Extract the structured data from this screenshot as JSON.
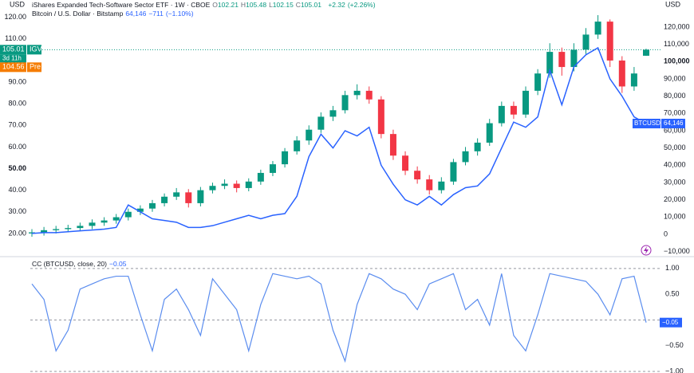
{
  "chart_data": [
    {
      "type": "candlestick",
      "unit": "USD",
      "y2unit": "USD",
      "ylim": [
        10,
        128
      ],
      "yticks": [
        {
          "value": 20,
          "label": "20.00"
        },
        {
          "value": 30,
          "label": "30.00"
        },
        {
          "value": 40,
          "label": "40.00"
        },
        {
          "value": 50,
          "label": "50.00"
        },
        {
          "value": 60,
          "label": "60.00"
        },
        {
          "value": 70,
          "label": "70.00"
        },
        {
          "value": 80,
          "label": "80.00"
        },
        {
          "value": 90,
          "label": "90.00"
        },
        {
          "value": 100,
          "label": "100.00"
        },
        {
          "value": 110,
          "label": "110.00"
        },
        {
          "value": 120,
          "label": "120.00"
        }
      ],
      "y2lim": [
        -12000,
        135700
      ],
      "y2ticks": [
        {
          "value": -10000,
          "label": "−10,000"
        },
        0,
        {
          "value": 10000,
          "label": "10,000"
        },
        {
          "value": 20000,
          "label": "20,000"
        },
        {
          "value": 30000,
          "label": "30,000"
        },
        {
          "value": 40000,
          "label": "40,000"
        },
        {
          "value": 50000,
          "label": "50,000"
        },
        {
          "value": 60000,
          "label": "60,000"
        },
        {
          "value": 70000,
          "label": "70,000"
        },
        {
          "value": 80000,
          "label": "80,000"
        },
        {
          "value": 90000,
          "label": "90,000"
        },
        {
          "value": 100000,
          "label": "100,000"
        },
        {
          "value": 110000,
          "label": "110,000"
        },
        {
          "value": 120000,
          "label": "120,000"
        }
      ],
      "series": [
        {
          "name": "iShares Expanded Tech-Software Sector ETF · 1W · CBOE",
          "symbol": "IGV",
          "up_color": "#089981",
          "down_color": "#f23645",
          "open": [
            20,
            20.5,
            21.5,
            22,
            22.5,
            23.5,
            25,
            26,
            27.5,
            30,
            31.5,
            34,
            37,
            39,
            34,
            40,
            42,
            43,
            41,
            44,
            48,
            52,
            58,
            63,
            68,
            74,
            77,
            84,
            86,
            82,
            66,
            56,
            49,
            45,
            40,
            44,
            53,
            58,
            62,
            71,
            79,
            75,
            86,
            94,
            104,
            97,
            105,
            112,
            118,
            100,
            88,
            102.21
          ],
          "high": [
            22,
            23,
            23.5,
            24,
            25,
            26.5,
            27.5,
            29,
            31.5,
            33,
            35.5,
            38.5,
            41,
            40.5,
            41.5,
            43.5,
            45,
            44.5,
            45.5,
            49.5,
            53.5,
            59.5,
            65,
            70,
            76,
            79,
            86,
            89,
            88,
            83.5,
            68,
            58,
            51,
            47,
            46,
            54.5,
            60,
            64,
            73,
            81,
            81,
            88,
            96,
            108,
            106,
            108,
            115,
            121,
            119,
            102,
            97,
            105.48
          ],
          "low": [
            18.5,
            19,
            20,
            20.5,
            21,
            22,
            23.5,
            24.5,
            26,
            28.5,
            30,
            32.5,
            35.5,
            32,
            32.5,
            38.5,
            40.5,
            39,
            39.5,
            42.5,
            46.5,
            50.5,
            56.5,
            61,
            66.5,
            72,
            75.5,
            82,
            80,
            64,
            54,
            47,
            43,
            38,
            38.5,
            42.5,
            51.5,
            56,
            60.5,
            69.5,
            73,
            73.5,
            84,
            92,
            93,
            95,
            103,
            110,
            97,
            85,
            86,
            102.15
          ],
          "close": [
            20.5,
            21.5,
            22,
            22.5,
            23.5,
            25,
            26,
            27.5,
            30,
            31.5,
            34,
            37,
            39,
            34,
            40,
            42,
            43,
            41,
            44,
            48,
            52,
            58,
            63,
            68,
            74,
            77,
            84,
            86,
            82,
            66,
            56,
            49,
            45,
            40,
            44,
            53,
            58,
            62,
            71,
            79,
            75,
            86,
            94,
            104,
            97,
            105,
            112,
            118,
            100,
            88,
            94,
            105.01
          ],
          "ohlc_prefixes": [
            "O",
            "H",
            "L",
            "C"
          ],
          "change": {
            "value": 2.32,
            "label": "+2.32"
          },
          "change_pct": {
            "value": 2.26,
            "label": "(+2.26%)"
          },
          "countdown": "3d 11h",
          "premarket": 104.56,
          "premarket_label": "Pre",
          "premarket_color": "#f57c00"
        },
        {
          "name": "Bitcoin / U.S. Dollar · Bitstamp",
          "symbol": "BTCUSD",
          "axis": "y2",
          "color": "#2962ff",
          "values": [
            500,
            1000,
            1000,
            1500,
            2000,
            2500,
            3000,
            4000,
            17000,
            13000,
            9000,
            8000,
            7000,
            4000,
            4000,
            5000,
            7000,
            9000,
            11000,
            9000,
            11000,
            12000,
            22000,
            45000,
            58000,
            50000,
            60000,
            57000,
            62000,
            40000,
            29000,
            20000,
            17000,
            22000,
            17000,
            23000,
            27000,
            28000,
            35000,
            50000,
            65000,
            62000,
            68000,
            95000,
            75000,
            97000,
            104000,
            108000,
            90000,
            80000,
            68000,
            64146
          ],
          "last_value": {
            "value": 64146,
            "label": "64,146"
          },
          "change": {
            "value": -711,
            "label": "−711"
          },
          "change_pct": {
            "value": -1.1,
            "label": "(−1.10%)"
          }
        }
      ]
    },
    {
      "type": "line",
      "title": "CC (BTCUSD, close, 20)",
      "color": "#5b8def",
      "values": [
        0.7,
        0.4,
        -0.6,
        -0.2,
        0.6,
        0.7,
        0.8,
        0.85,
        0.85,
        0.1,
        -0.6,
        0.4,
        0.6,
        0.2,
        -0.3,
        0.8,
        0.5,
        0.2,
        -0.6,
        0.3,
        0.9,
        0.85,
        0.8,
        0.85,
        0.7,
        -0.2,
        -0.8,
        0.3,
        0.9,
        0.8,
        0.6,
        0.5,
        0.2,
        0.7,
        0.8,
        0.9,
        0.2,
        0.4,
        -0.1,
        0.9,
        -0.3,
        -0.6,
        0.1,
        0.9,
        0.85,
        0.8,
        0.75,
        0.5,
        0.1,
        0.8,
        0.85,
        -0.05
      ],
      "last_value": {
        "value": -0.05,
        "label": "−0.05"
      },
      "ylim": [
        -1.03,
        1.23
      ],
      "yticks": [
        {
          "value": 1,
          "label": "1.00"
        },
        {
          "value": 0.5,
          "label": "0.50"
        },
        {
          "value": -0.5,
          "label": "−0.50"
        },
        {
          "value": -1,
          "label": "−1.00"
        }
      ],
      "hlines": [
        1,
        0,
        -1
      ]
    }
  ]
}
